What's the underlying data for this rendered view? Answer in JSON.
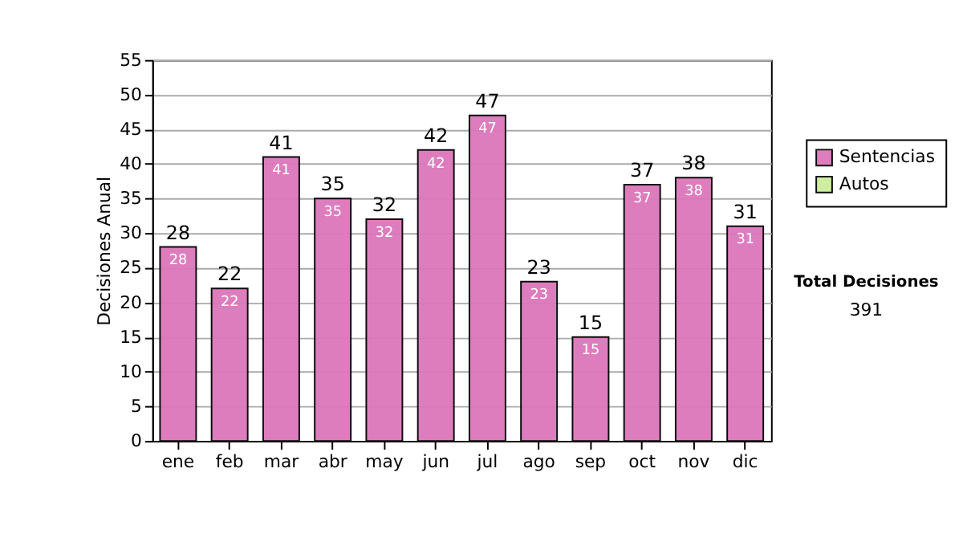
{
  "chart_data": {
    "type": "bar",
    "stacked": true,
    "categories": [
      "ene",
      "feb",
      "mar",
      "abr",
      "may",
      "jun",
      "jul",
      "ago",
      "sep",
      "oct",
      "nov",
      "dic"
    ],
    "ylabel": "Decisiones Anual",
    "series": [
      {
        "name": "Sentencias",
        "color": "#dd77bb",
        "values": [
          28,
          22,
          41,
          35,
          32,
          42,
          47,
          23,
          15,
          37,
          38,
          31
        ],
        "value_labels": [
          "28",
          "22",
          "41",
          "35",
          "32",
          "42",
          "47",
          "23",
          "15",
          "37",
          "38",
          "31"
        ]
      },
      {
        "name": "Autos",
        "color": "#ccee99",
        "values": [
          0,
          0,
          0,
          0,
          0,
          0,
          0,
          0,
          0,
          0,
          0,
          0
        ]
      }
    ],
    "totals": [
      "28",
      "22",
      "41",
      "35",
      "32",
      "42",
      "47",
      "23",
      "15",
      "37",
      "38",
      "31"
    ],
    "ylim": [
      0,
      55
    ],
    "yticks": [
      0,
      5,
      10,
      15,
      20,
      25,
      30,
      35,
      40,
      45,
      50,
      55
    ],
    "grid": "y",
    "legend": "right",
    "annotations": [
      "Total Decisiones",
      "391"
    ]
  }
}
